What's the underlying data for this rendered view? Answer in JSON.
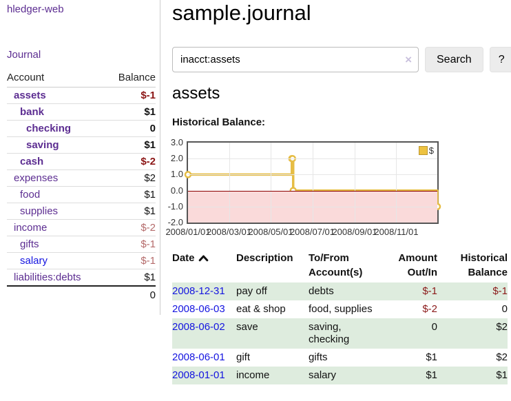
{
  "app": {
    "title": "hledger-web",
    "nav_journal": "Journal"
  },
  "colors": {
    "link_purple": "#5c2d91",
    "link_blue": "#1414e0",
    "negative": "#8b1515",
    "negative_muted": "#b46a6a",
    "row_stripe_green": "#deecde",
    "chart_line_gold": "#e6bd45",
    "chart_negative_fill": "#fadada",
    "chart_zero_line": "#8b0000"
  },
  "sidebar": {
    "headers": {
      "account": "Account",
      "balance": "Balance"
    },
    "accounts": [
      {
        "name": "assets",
        "level": 1,
        "bold": true,
        "blue": false,
        "balance": "$-1",
        "balance_class": "neg"
      },
      {
        "name": "bank",
        "level": 2,
        "bold": true,
        "blue": false,
        "balance": "$1",
        "balance_class": ""
      },
      {
        "name": "checking",
        "level": 3,
        "bold": true,
        "blue": false,
        "balance": "0",
        "balance_class": ""
      },
      {
        "name": "saving",
        "level": 3,
        "bold": true,
        "blue": false,
        "balance": "$1",
        "balance_class": ""
      },
      {
        "name": "cash",
        "level": 2,
        "bold": true,
        "blue": false,
        "balance": "$-2",
        "balance_class": "neg"
      },
      {
        "name": "expenses",
        "level": 1,
        "bold": false,
        "blue": false,
        "balance": "$2",
        "balance_class": ""
      },
      {
        "name": "food",
        "level": 2,
        "bold": false,
        "blue": false,
        "balance": "$1",
        "balance_class": ""
      },
      {
        "name": "supplies",
        "level": 2,
        "bold": false,
        "blue": false,
        "balance": "$1",
        "balance_class": ""
      },
      {
        "name": "income",
        "level": 1,
        "bold": false,
        "blue": false,
        "balance": "$-2",
        "balance_class": "neg-muted"
      },
      {
        "name": "gifts",
        "level": 2,
        "bold": false,
        "blue": false,
        "balance": "$-1",
        "balance_class": "neg-muted"
      },
      {
        "name": "salary",
        "level": 2,
        "bold": false,
        "blue": true,
        "balance": "$-1",
        "balance_class": "neg-muted"
      },
      {
        "name": "liabilities:debts",
        "level": 1,
        "bold": false,
        "blue": false,
        "balance": "$1",
        "balance_class": ""
      }
    ],
    "total": "0"
  },
  "main": {
    "title": "sample.journal",
    "search": {
      "value": "inacct:assets",
      "clear_icon": "×",
      "search_button": "Search",
      "help_button": "?"
    },
    "account_heading": "assets",
    "chart_heading": "Historical Balance:"
  },
  "chart_data": {
    "type": "line",
    "title": "Historical Balance:",
    "steps": true,
    "series": [
      {
        "name": "$",
        "points": [
          [
            "2008-01-01",
            1
          ],
          [
            "2008-06-01",
            2
          ],
          [
            "2008-06-02",
            2
          ],
          [
            "2008-06-03",
            0
          ],
          [
            "2008-12-31",
            -1
          ]
        ]
      }
    ],
    "xlim": [
      "2008-01-01",
      "2008-12-31"
    ],
    "ylim": [
      -2,
      3
    ],
    "x_ticks": [
      "2008/01/01",
      "2008/03/01",
      "2008/05/01",
      "2008/07/01",
      "2008/09/01",
      "2008/11/01"
    ],
    "y_ticks": [
      "3.0",
      "2.0",
      "1.0",
      "0.0",
      "-1.0",
      "-2.0"
    ],
    "grid": true,
    "legend_position": "top-right",
    "legend_label": "$"
  },
  "register": {
    "headers": {
      "date": "Date",
      "description": "Description",
      "accounts": "To/From Account(s)",
      "amount": "Amount Out/In",
      "balance": "Historical Balance"
    },
    "rows": [
      {
        "date": "2008-12-31",
        "description": "pay off",
        "accounts": "debts",
        "amount": "$-1",
        "amount_neg": true,
        "balance": "$-1",
        "balance_neg": true,
        "stripe": true
      },
      {
        "date": "2008-06-03",
        "description": "eat & shop",
        "accounts": "food, supplies",
        "amount": "$-2",
        "amount_neg": true,
        "balance": "0",
        "balance_neg": false,
        "stripe": false
      },
      {
        "date": "2008-06-02",
        "description": "save",
        "accounts": "saving, checking",
        "amount": "0",
        "amount_neg": false,
        "balance": "$2",
        "balance_neg": false,
        "stripe": true
      },
      {
        "date": "2008-06-01",
        "description": "gift",
        "accounts": "gifts",
        "amount": "$1",
        "amount_neg": false,
        "balance": "$2",
        "balance_neg": false,
        "stripe": false
      },
      {
        "date": "2008-01-01",
        "description": "income",
        "accounts": "salary",
        "amount": "$1",
        "amount_neg": false,
        "balance": "$1",
        "balance_neg": false,
        "stripe": true
      }
    ]
  }
}
